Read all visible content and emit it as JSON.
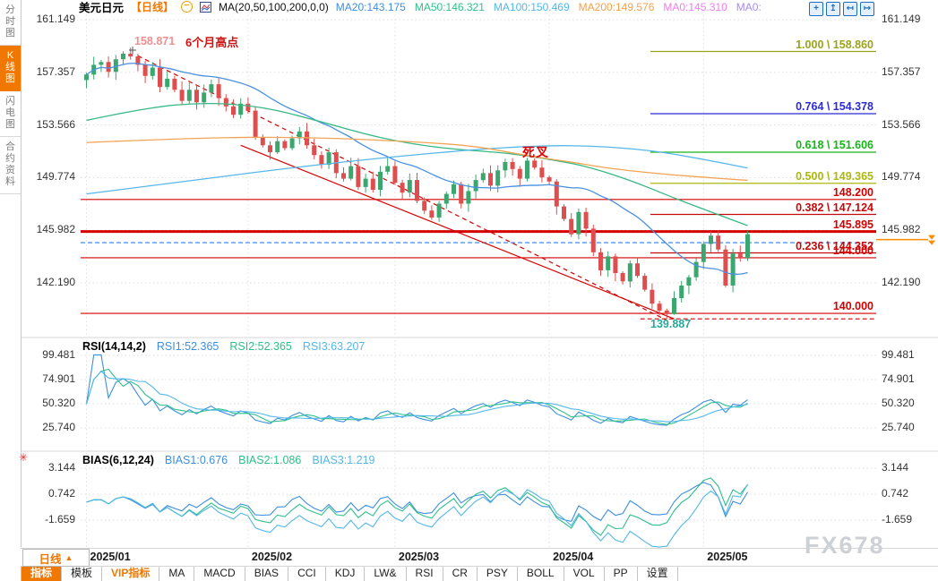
{
  "header": {
    "symbol": "美元日元",
    "period_tag": "【日线】",
    "indicator_label": "MA(20,50,100,200,0,0)",
    "ma_values": [
      {
        "label": "MA20:143.175",
        "color": "#3e8ede"
      },
      {
        "label": "MA50:146.321",
        "color": "#2ec08a"
      },
      {
        "label": "MA100:150.469",
        "color": "#53b7ea"
      },
      {
        "label": "MA200:149.576",
        "color": "#f5a04a"
      },
      {
        "label": "MA0:145.310",
        "color": "#f07cf0"
      },
      {
        "label": "MA0:",
        "color": "#a58cf2"
      }
    ],
    "window_icons": [
      {
        "name": "pan-icon",
        "glyph": "+"
      },
      {
        "name": "zoom-vertical-icon",
        "glyph": "↥"
      },
      {
        "name": "zoom-horizontal-icon",
        "glyph": "↤"
      },
      {
        "name": "exit-fullscreen-icon",
        "glyph": "↦"
      }
    ]
  },
  "icons": {
    "minus_circle": "−",
    "period_up_triangle": "▲",
    "indicator_settings": "✳"
  },
  "sidebar": {
    "items": [
      {
        "label": "分时图",
        "active": false
      },
      {
        "label": "K线图",
        "active": true
      },
      {
        "label": "闪电图",
        "active": false
      },
      {
        "label": "合约资料",
        "active": false
      }
    ]
  },
  "main_chart": {
    "y_labels": [
      "161.149",
      "157.357",
      "153.566",
      "149.774",
      "145.982",
      "142.190"
    ],
    "fib_levels": [
      {
        "label": "1.000 \\ 158.860",
        "price": 158.86,
        "color": "#9aa41b"
      },
      {
        "label": "0.764 \\ 154.378",
        "price": 154.378,
        "color": "#2b2bd4"
      },
      {
        "label": "0.618 \\ 151.606",
        "price": 151.606,
        "color": "#17b517"
      },
      {
        "label": "0.500 \\ 149.365",
        "price": 149.365,
        "color": "#adb80e"
      },
      {
        "label": "0.382 \\ 147.124",
        "price": 147.124,
        "color": "#c40a0a"
      },
      {
        "label": "0.236 \\ 144.352",
        "price": 144.352,
        "color": "#c40a0a"
      }
    ],
    "price_lines": [
      {
        "label": "148.200",
        "price": 148.2,
        "thick": false
      },
      {
        "label": "145.895",
        "price": 145.895,
        "thick": true
      },
      {
        "label": "144.000",
        "price": 144.0,
        "thick": false
      },
      {
        "label": "140.000",
        "price": 140.0,
        "thick": false
      }
    ],
    "annotations": {
      "swing_high": "158.871",
      "swing_high_note": "6个月高点",
      "death_cross": "死叉",
      "swing_low": "139.887"
    },
    "current_price_marker": {
      "price": 145.31,
      "color": "#ff8a00"
    }
  },
  "rsi_panel": {
    "title": "RSI(14,14,2)",
    "legend": [
      {
        "label": "RSI1:52.365",
        "color": "#3e8ede"
      },
      {
        "label": "RSI2:52.365",
        "color": "#2ec08a"
      },
      {
        "label": "RSI3:63.207",
        "color": "#53b7ea"
      }
    ],
    "y_labels": [
      "99.481",
      "74.901",
      "50.320",
      "25.740"
    ]
  },
  "bias_panel": {
    "title": "BIAS(6,12,24)",
    "legend": [
      {
        "label": "BIAS1:0.676",
        "color": "#3e8ede"
      },
      {
        "label": "BIAS2:1.086",
        "color": "#2ec08a"
      },
      {
        "label": "BIAS3:1.219",
        "color": "#53b7ea"
      }
    ],
    "y_labels": [
      "3.144",
      "0.742",
      "-1.659"
    ]
  },
  "x_axis": {
    "dates": [
      "2025/01",
      "2025/02",
      "2025/03",
      "2025/04",
      "2025/05"
    ],
    "period_button": "日线"
  },
  "toolbar": {
    "items": [
      {
        "label": "指标",
        "state": "active"
      },
      {
        "label": "模板",
        "state": "normal"
      },
      {
        "label": "VIP指标",
        "state": "vip"
      },
      {
        "label": "MA",
        "state": "normal"
      },
      {
        "label": "MACD",
        "state": "normal"
      },
      {
        "label": "BIAS",
        "state": "normal"
      },
      {
        "label": "CCI",
        "state": "normal"
      },
      {
        "label": "KDJ",
        "state": "normal"
      },
      {
        "label": "LW&",
        "state": "normal"
      },
      {
        "label": "RSI",
        "state": "normal"
      },
      {
        "label": "CR",
        "state": "normal"
      },
      {
        "label": "PSY",
        "state": "normal"
      },
      {
        "label": "BOLL",
        "state": "normal"
      },
      {
        "label": "VOL",
        "state": "normal"
      },
      {
        "label": "PP",
        "state": "normal"
      },
      {
        "label": "设置",
        "state": "normal"
      }
    ]
  },
  "watermark": "FX678",
  "chart_data": {
    "type": "candlestick",
    "title": "USD/JPY daily (美元日元 日线)",
    "y_axis_ticks": [
      161.149,
      157.357,
      153.566,
      149.774,
      145.982,
      142.19
    ],
    "x_months": [
      "2025/01",
      "2025/02",
      "2025/03",
      "2025/04",
      "2025/05"
    ],
    "month_start_indices": [
      0,
      22,
      42,
      63,
      84
    ],
    "first_open": 156.8,
    "closes": [
      157.2,
      157.9,
      158.1,
      157.4,
      158.3,
      158.7,
      158.5,
      157.9,
      157.1,
      157.7,
      156.3,
      156.9,
      156.1,
      155.3,
      156.1,
      155.2,
      155.9,
      156.5,
      155.5,
      154.9,
      154.3,
      155.1,
      154.6,
      152.7,
      152.1,
      151.6,
      152.4,
      151.9,
      152.6,
      153.1,
      152.1,
      151.4,
      150.7,
      151.6,
      150.1,
      149.7,
      150.6,
      149.1,
      149.7,
      148.9,
      150.2,
      150.6,
      149.4,
      148.7,
      149.6,
      148.1,
      147.4,
      146.9,
      147.9,
      148.6,
      149.3,
      147.9,
      148.8,
      149.6,
      150.1,
      149.2,
      150.3,
      150.9,
      150.4,
      149.7,
      151.0,
      150.5,
      149.8,
      149.5,
      147.7,
      146.8,
      145.7,
      147.3,
      146.1,
      144.4,
      143.1,
      144.1,
      142.9,
      142.3,
      143.6,
      142.7,
      141.7,
      140.7,
      140.2,
      139.95,
      141.1,
      142.0,
      142.6,
      143.7,
      145.0,
      145.6,
      144.6,
      142.0,
      144.3,
      144.0,
      145.7
    ],
    "swing_high": {
      "index": 5,
      "price": 158.871
    },
    "swing_low": {
      "index": 80,
      "price": 139.887
    },
    "last_high": {
      "index": 90,
      "price": 145.95
    },
    "moving_averages": {
      "ma20": {
        "color": "#4a90e2",
        "period": 20,
        "computed_from_closes": true
      },
      "ma50": {
        "color": "#35b883",
        "points": [
          [
            0,
            153.9
          ],
          [
            8,
            154.8
          ],
          [
            16,
            155.2
          ],
          [
            24,
            154.9
          ],
          [
            32,
            153.8
          ],
          [
            40,
            152.6
          ],
          [
            48,
            151.9
          ],
          [
            56,
            151.6
          ],
          [
            60,
            151.35
          ],
          [
            64,
            151.0
          ],
          [
            68,
            150.6
          ],
          [
            74,
            149.6
          ],
          [
            80,
            148.3
          ],
          [
            85,
            147.3
          ],
          [
            90,
            146.32
          ]
        ]
      },
      "ma100": {
        "color": "#57b7e8",
        "points": [
          [
            0,
            148.6
          ],
          [
            12,
            149.4
          ],
          [
            25,
            150.3
          ],
          [
            40,
            151.2
          ],
          [
            55,
            151.9
          ],
          [
            66,
            152.15
          ],
          [
            76,
            151.8
          ],
          [
            83,
            151.2
          ],
          [
            90,
            150.47
          ]
        ]
      },
      "ma200": {
        "color": "#f2a454",
        "points": [
          [
            0,
            152.3
          ],
          [
            15,
            152.65
          ],
          [
            30,
            152.7
          ],
          [
            45,
            152.35
          ],
          [
            53,
            152.05
          ],
          [
            60,
            151.35
          ],
          [
            66,
            150.9
          ],
          [
            71,
            150.44
          ],
          [
            78,
            150.05
          ],
          [
            84,
            149.8
          ],
          [
            90,
            149.58
          ]
        ]
      }
    },
    "trend_lines": [
      {
        "style": "dashed",
        "color": "#d40000",
        "from": [
          7,
          158.55
        ],
        "to": [
          79,
          139.5
        ]
      },
      {
        "style": "solid",
        "color": "#d40000",
        "from": [
          21,
          152.1
        ],
        "to": [
          80,
          139.6
        ]
      }
    ],
    "support_dashed": {
      "price": 139.6,
      "from_index": 76
    },
    "prev_close_dashed": {
      "price": 145.09,
      "color": "#2e7de0"
    },
    "sub_indicators": {
      "rsi": {
        "periods": [
          14,
          14,
          2
        ],
        "ticks": [
          99.481,
          74.901,
          50.32,
          25.74
        ]
      },
      "bias": {
        "periods": [
          6,
          12,
          24
        ],
        "ticks": [
          3.144,
          0.742,
          -1.659
        ]
      }
    }
  }
}
